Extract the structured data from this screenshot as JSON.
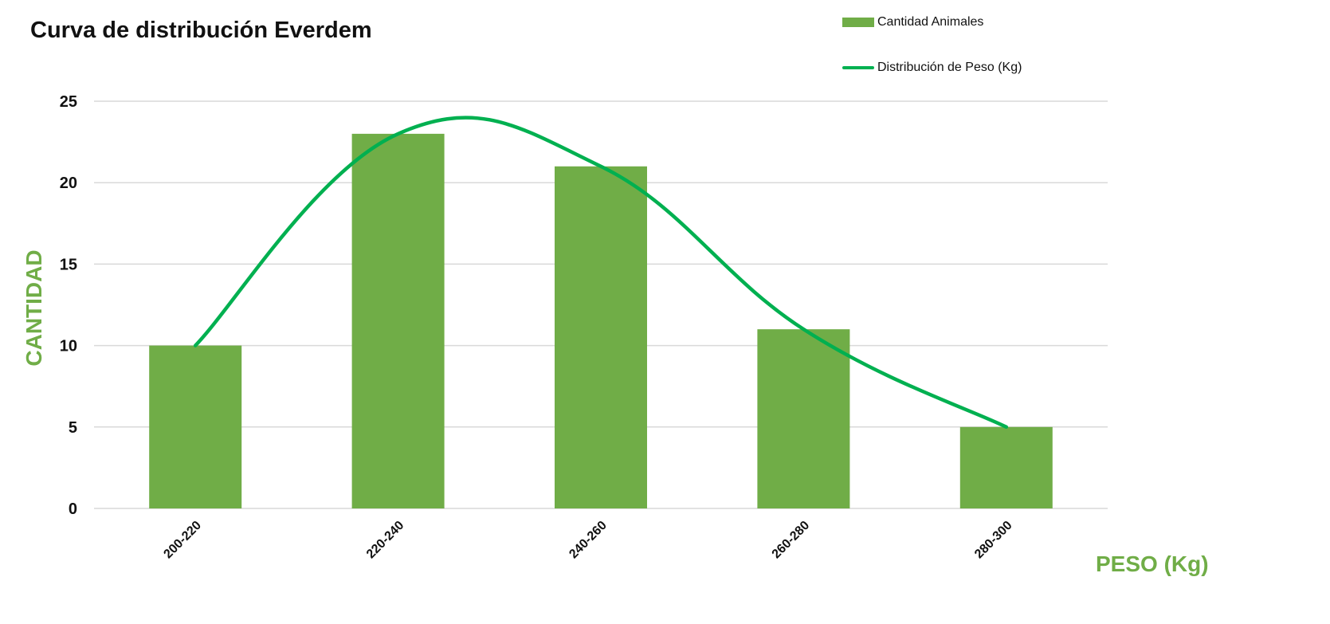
{
  "chart_data": {
    "type": "bar",
    "title": "Curva de distribución Everdem",
    "xlabel": "PESO (Kg)",
    "ylabel": "CANTIDAD",
    "categories": [
      "200-220",
      "220-240",
      "240-260",
      "260-280",
      "280-300"
    ],
    "series": [
      {
        "name": "Cantidad Animales",
        "type": "bar",
        "values": [
          10,
          23,
          21,
          11,
          5
        ]
      },
      {
        "name": "Distribución de Peso (Kg)",
        "type": "line",
        "smooth": true,
        "values": [
          10,
          23,
          21,
          11,
          5
        ]
      }
    ],
    "ylim": [
      0,
      25
    ],
    "yticks": [
      0,
      5,
      10,
      15,
      20,
      25
    ],
    "grid": true,
    "legend_position": "top-right"
  },
  "colors": {
    "bar": "#70ad47",
    "line": "#00b050",
    "axis_title": "#70ad47",
    "grid": "#d9d9d9"
  }
}
